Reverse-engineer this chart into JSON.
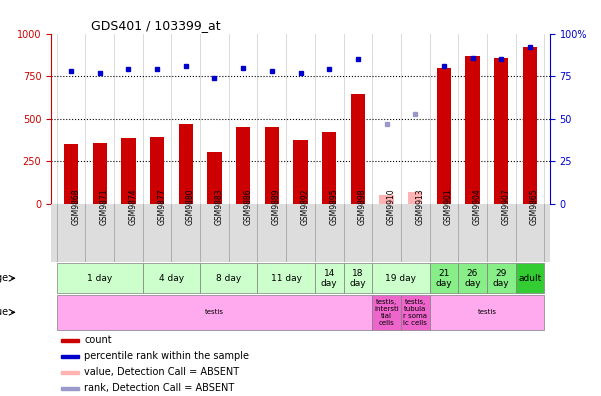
{
  "title": "GDS401 / 103399_at",
  "samples": [
    "GSM9868",
    "GSM9871",
    "GSM9874",
    "GSM9877",
    "GSM9880",
    "GSM9883",
    "GSM9886",
    "GSM9889",
    "GSM9892",
    "GSM9895",
    "GSM9898",
    "GSM9910",
    "GSM9913",
    "GSM9901",
    "GSM9904",
    "GSM9907",
    "GSM9865"
  ],
  "bar_values": [
    350,
    360,
    390,
    395,
    470,
    305,
    455,
    450,
    375,
    425,
    645,
    null,
    null,
    800,
    870,
    860,
    920
  ],
  "absent_bar_values": [
    null,
    null,
    null,
    null,
    null,
    null,
    null,
    null,
    null,
    null,
    null,
    55,
    70,
    null,
    null,
    null,
    null
  ],
  "dot_values": [
    78,
    77,
    79,
    79,
    81,
    74,
    80,
    78,
    77,
    79,
    85,
    null,
    null,
    81,
    86,
    85,
    92
  ],
  "absent_dot_values": [
    null,
    null,
    null,
    null,
    null,
    null,
    null,
    null,
    null,
    null,
    null,
    47,
    53,
    null,
    null,
    null,
    null
  ],
  "ylim_left": [
    0,
    1000
  ],
  "ylim_right": [
    0,
    100
  ],
  "yticks_left": [
    0,
    250,
    500,
    750,
    1000
  ],
  "yticks_right": [
    0,
    25,
    50,
    75,
    100
  ],
  "bar_color": "#cc0000",
  "dot_color": "#0000cc",
  "absent_bar_color": "#ffb3b3",
  "absent_dot_color": "#9999cc",
  "age_groups": [
    {
      "label": "1 day",
      "cols": [
        0,
        1,
        2
      ],
      "color": "#ccffcc"
    },
    {
      "label": "4 day",
      "cols": [
        3,
        4
      ],
      "color": "#ccffcc"
    },
    {
      "label": "8 day",
      "cols": [
        5,
        6
      ],
      "color": "#ccffcc"
    },
    {
      "label": "11 day",
      "cols": [
        7,
        8
      ],
      "color": "#ccffcc"
    },
    {
      "label": "14\nday",
      "cols": [
        9
      ],
      "color": "#ccffcc"
    },
    {
      "label": "18\nday",
      "cols": [
        10
      ],
      "color": "#ccffcc"
    },
    {
      "label": "19 day",
      "cols": [
        11,
        12
      ],
      "color": "#ccffcc"
    },
    {
      "label": "21\nday",
      "cols": [
        13
      ],
      "color": "#88ee88"
    },
    {
      "label": "26\nday",
      "cols": [
        14
      ],
      "color": "#88ee88"
    },
    {
      "label": "29\nday",
      "cols": [
        15
      ],
      "color": "#88ee88"
    },
    {
      "label": "adult",
      "cols": [
        16
      ],
      "color": "#33cc33"
    }
  ],
  "tissue_groups": [
    {
      "label": "testis",
      "cols": [
        0,
        1,
        2,
        3,
        4,
        5,
        6,
        7,
        8,
        9,
        10
      ],
      "color": "#ffaaee"
    },
    {
      "label": "testis,\nintersti\ntial\ncells",
      "cols": [
        11
      ],
      "color": "#ee66cc"
    },
    {
      "label": "testis,\ntubula\nr soma\nic cells",
      "cols": [
        12
      ],
      "color": "#ee66cc"
    },
    {
      "label": "testis",
      "cols": [
        13,
        14,
        15,
        16
      ],
      "color": "#ffaaee"
    }
  ],
  "legend_items": [
    {
      "color": "#cc0000",
      "label": "count"
    },
    {
      "color": "#0000cc",
      "label": "percentile rank within the sample"
    },
    {
      "color": "#ffb3b3",
      "label": "value, Detection Call = ABSENT"
    },
    {
      "color": "#9999cc",
      "label": "rank, Detection Call = ABSENT"
    }
  ]
}
